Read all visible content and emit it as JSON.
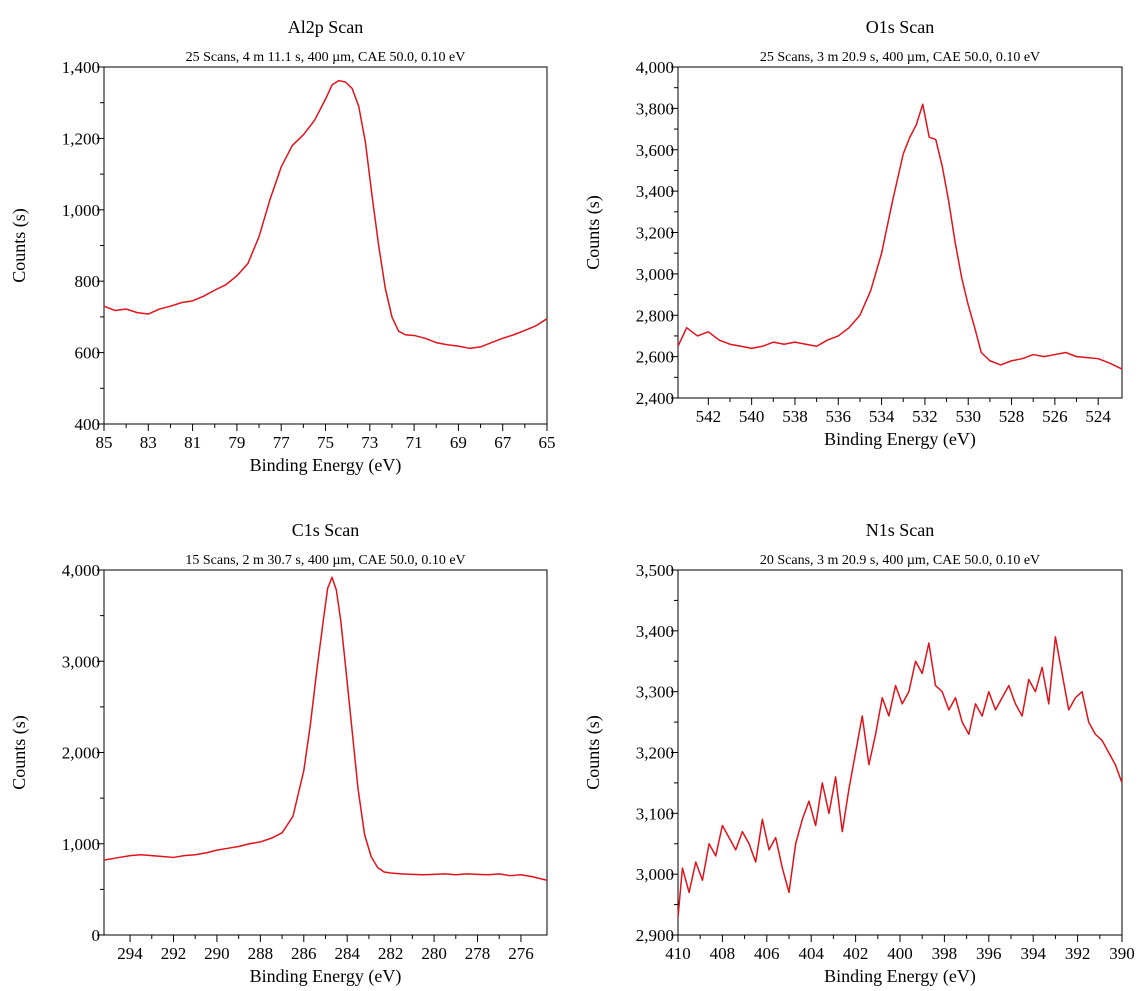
{
  "figure": {
    "trace_color": "#e0131b"
  },
  "chart_data": [
    {
      "type": "line",
      "title": "Al2p Scan",
      "subtitle": "25 Scans, 4 m 11.1 s, 400 µm, CAE 50.0, 0.10 eV",
      "xlabel": "Binding Energy (eV)",
      "ylabel": "Counts (s)",
      "xlim": [
        85,
        65
      ],
      "ylim": [
        400,
        1400
      ],
      "x_reversed": true,
      "xticks": [
        85,
        83,
        81,
        79,
        77,
        75,
        73,
        71,
        69,
        67,
        65
      ],
      "xtick_labels": [
        "85",
        "83",
        "81",
        "79",
        "77",
        "75",
        "73",
        "71",
        "69",
        "67",
        "65"
      ],
      "yticks": [
        400,
        600,
        800,
        1000,
        1200,
        1400
      ],
      "ytick_labels": [
        "400",
        "600",
        "800",
        "1,000",
        "1,200",
        "1,400"
      ],
      "grid": false,
      "series": [
        {
          "x": [
            85,
            84.5,
            84,
            83.5,
            83,
            82.5,
            82,
            81.5,
            81,
            80.5,
            80,
            79.5,
            79,
            78.5,
            78,
            77.5,
            77,
            76.5,
            76,
            75.5,
            75,
            74.7,
            74.4,
            74.1,
            73.8,
            73.5,
            73.2,
            72.9,
            72.6,
            72.3,
            72,
            71.7,
            71.4,
            71,
            70.5,
            70,
            69.5,
            69,
            68.5,
            68,
            67.5,
            67,
            66.5,
            66,
            65.5,
            65
          ],
          "y": [
            730,
            718,
            722,
            712,
            708,
            722,
            730,
            740,
            745,
            758,
            775,
            790,
            815,
            850,
            925,
            1030,
            1120,
            1180,
            1210,
            1250,
            1310,
            1350,
            1362,
            1358,
            1340,
            1290,
            1190,
            1040,
            900,
            780,
            700,
            660,
            650,
            648,
            640,
            628,
            622,
            618,
            612,
            616,
            628,
            640,
            650,
            662,
            675,
            695
          ]
        }
      ]
    },
    {
      "type": "line",
      "title": "O1s Scan",
      "subtitle": "25 Scans, 3 m 20.9 s, 400 µm, CAE 50.0, 0.10 eV",
      "xlabel": "Binding Energy (eV)",
      "ylabel": "Counts (s)",
      "xlim": [
        543.4,
        522.9
      ],
      "ylim": [
        2400,
        4000
      ],
      "x_reversed": true,
      "xticks": [
        542,
        540,
        538,
        536,
        534,
        532,
        530,
        528,
        526,
        524
      ],
      "xtick_labels": [
        "542",
        "540",
        "538",
        "536",
        "534",
        "532",
        "530",
        "528",
        "526",
        "524"
      ],
      "yticks": [
        2400,
        2600,
        2800,
        3000,
        3200,
        3400,
        3600,
        3800,
        4000
      ],
      "ytick_labels": [
        "2,400",
        "2,600",
        "2,800",
        "3,000",
        "3,200",
        "3,400",
        "3,600",
        "3,800",
        "4,000"
      ],
      "grid": false,
      "series": [
        {
          "x": [
            543.4,
            543,
            542.5,
            542,
            541.5,
            541,
            540.5,
            540,
            539.5,
            539,
            538.5,
            538,
            537.5,
            537,
            536.5,
            536,
            535.5,
            535,
            534.5,
            534,
            533.5,
            533,
            532.7,
            532.4,
            532.1,
            531.8,
            531.5,
            531.2,
            530.9,
            530.6,
            530.3,
            530,
            529.7,
            529.4,
            529,
            528.5,
            528,
            527.5,
            527,
            526.5,
            526,
            525.5,
            525,
            524.5,
            524,
            523.5,
            522.9
          ],
          "y": [
            2650,
            2740,
            2700,
            2720,
            2680,
            2660,
            2650,
            2640,
            2650,
            2670,
            2660,
            2670,
            2660,
            2650,
            2680,
            2700,
            2740,
            2800,
            2920,
            3100,
            3350,
            3580,
            3660,
            3720,
            3820,
            3660,
            3650,
            3520,
            3350,
            3150,
            2980,
            2850,
            2740,
            2620,
            2580,
            2560,
            2580,
            2590,
            2610,
            2600,
            2610,
            2620,
            2600,
            2595,
            2590,
            2570,
            2540
          ]
        }
      ]
    },
    {
      "type": "line",
      "title": "C1s Scan",
      "subtitle": "15 Scans, 2 m 30.7 s, 400 µm, CAE 50.0, 0.10 eV",
      "xlabel": "Binding Energy (eV)",
      "ylabel": "Counts (s)",
      "xlim": [
        295.2,
        274.8
      ],
      "ylim": [
        0,
        4000
      ],
      "x_reversed": true,
      "xticks": [
        294,
        292,
        290,
        288,
        286,
        284,
        282,
        280,
        278,
        276
      ],
      "xtick_labels": [
        "294",
        "292",
        "290",
        "288",
        "286",
        "284",
        "282",
        "280",
        "278",
        "276"
      ],
      "yticks": [
        0,
        1000,
        2000,
        3000,
        4000
      ],
      "ytick_labels": [
        "0",
        "1,000",
        "2,000",
        "3,000",
        "4,000"
      ],
      "grid": false,
      "series": [
        {
          "x": [
            295.2,
            294.5,
            294,
            293.5,
            293,
            292.5,
            292,
            291.5,
            291,
            290.5,
            290,
            289.5,
            289,
            288.5,
            288,
            287.5,
            287,
            286.5,
            286,
            285.7,
            285.4,
            285.1,
            284.9,
            284.7,
            284.5,
            284.3,
            284.1,
            283.8,
            283.5,
            283.2,
            282.9,
            282.6,
            282.3,
            282,
            281.5,
            281,
            280.5,
            280,
            279.5,
            279,
            278.5,
            278,
            277.5,
            277,
            276.5,
            276,
            275.5,
            274.8
          ],
          "y": [
            820,
            850,
            870,
            880,
            870,
            860,
            850,
            870,
            880,
            900,
            930,
            950,
            970,
            1000,
            1020,
            1060,
            1120,
            1300,
            1800,
            2300,
            2900,
            3450,
            3800,
            3920,
            3780,
            3450,
            3000,
            2300,
            1600,
            1100,
            860,
            740,
            690,
            680,
            670,
            665,
            660,
            665,
            670,
            660,
            670,
            665,
            660,
            670,
            650,
            660,
            640,
            600
          ]
        }
      ]
    },
    {
      "type": "line",
      "title": "N1s Scan",
      "subtitle": "20 Scans, 3 m 20.9 s, 400 µm, CAE 50.0, 0.10 eV",
      "xlabel": "Binding Energy (eV)",
      "ylabel": "Counts (s)",
      "xlim": [
        410,
        390
      ],
      "ylim": [
        2900,
        3500
      ],
      "x_reversed": true,
      "xticks": [
        410,
        408,
        406,
        404,
        402,
        400,
        398,
        396,
        394,
        392,
        390
      ],
      "xtick_labels": [
        "410",
        "408",
        "406",
        "404",
        "402",
        "400",
        "398",
        "396",
        "394",
        "392",
        "390"
      ],
      "yticks": [
        2900,
        3000,
        3100,
        3200,
        3300,
        3400,
        3500
      ],
      "ytick_labels": [
        "2,900",
        "3,000",
        "3,100",
        "3,200",
        "3,300",
        "3,400",
        "3,500"
      ],
      "grid": false,
      "series": [
        {
          "x": [
            410,
            409.8,
            409.5,
            409.2,
            408.9,
            408.6,
            408.3,
            408,
            407.7,
            407.4,
            407.1,
            406.8,
            406.5,
            406.2,
            405.9,
            405.6,
            405.3,
            405,
            404.7,
            404.4,
            404.1,
            403.8,
            403.5,
            403.2,
            402.9,
            402.6,
            402.3,
            402,
            401.7,
            401.4,
            401.1,
            400.8,
            400.5,
            400.2,
            399.9,
            399.6,
            399.3,
            399,
            398.7,
            398.4,
            398.1,
            397.8,
            397.5,
            397.2,
            396.9,
            396.6,
            396.3,
            396,
            395.7,
            395.4,
            395.1,
            394.8,
            394.5,
            394.2,
            393.9,
            393.6,
            393.3,
            393,
            392.7,
            392.4,
            392.1,
            391.8,
            391.5,
            391.2,
            390.9,
            390.6,
            390.3,
            390
          ],
          "y": [
            2930,
            3010,
            2970,
            3020,
            2990,
            3050,
            3030,
            3080,
            3060,
            3040,
            3070,
            3050,
            3020,
            3090,
            3040,
            3060,
            3010,
            2970,
            3050,
            3090,
            3120,
            3080,
            3150,
            3100,
            3160,
            3070,
            3140,
            3200,
            3260,
            3180,
            3230,
            3290,
            3260,
            3310,
            3280,
            3300,
            3350,
            3330,
            3380,
            3310,
            3300,
            3270,
            3290,
            3250,
            3230,
            3280,
            3260,
            3300,
            3270,
            3290,
            3310,
            3280,
            3260,
            3320,
            3300,
            3340,
            3280,
            3390,
            3330,
            3270,
            3290,
            3300,
            3250,
            3230,
            3220,
            3200,
            3180,
            3150
          ]
        }
      ]
    }
  ]
}
